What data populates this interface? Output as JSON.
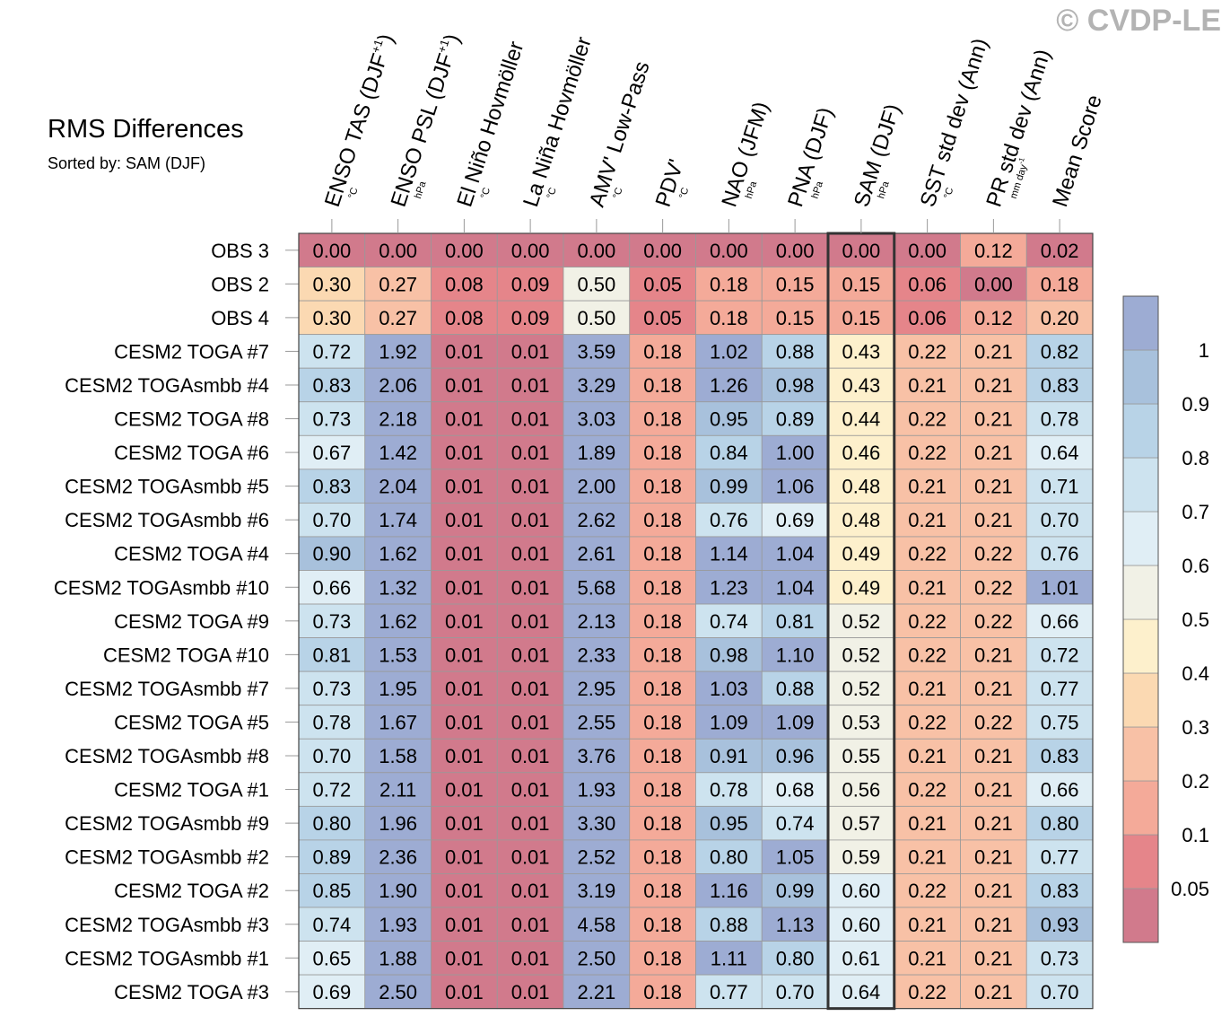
{
  "watermark": "© CVDP-LE",
  "chart_data": {
    "type": "heatmap",
    "title": "RMS Differences",
    "subtitle": "Sorted by: SAM (DJF)",
    "columns": [
      {
        "label": "ENSO TAS (DJF",
        "sup": "+1",
        "close": ")",
        "unit": "°C"
      },
      {
        "label": "ENSO PSL (DJF",
        "sup": "+1",
        "close": ")",
        "unit": "hPa"
      },
      {
        "label": "El Niño Hovmöller",
        "unit": "°C"
      },
      {
        "label": "La Niña Hovmöller",
        "unit": "°C"
      },
      {
        "label": "AMV' Low-Pass",
        "unit": "°C"
      },
      {
        "label": "PDV'",
        "unit": "°C"
      },
      {
        "label": "NAO (JFM)",
        "unit": "hPa"
      },
      {
        "label": "PNA (DJF)",
        "unit": "hPa"
      },
      {
        "label": "SAM (DJF)",
        "unit": "hPa"
      },
      {
        "label": "SST std dev (Ann)",
        "unit": "°C"
      },
      {
        "label": "PR std dev (Ann)",
        "unit": "mm day",
        "unit_sup": "-1"
      },
      {
        "label": "Mean Score",
        "unit": ""
      }
    ],
    "sorted_column_index": 8,
    "rows": [
      {
        "label": "OBS 3",
        "values": [
          "0.00",
          "0.00",
          "0.00",
          "0.00",
          "0.00",
          "0.00",
          "0.00",
          "0.00",
          "0.00",
          "0.00",
          "0.12",
          "0.02"
        ]
      },
      {
        "label": "OBS 2",
        "values": [
          "0.30",
          "0.27",
          "0.08",
          "0.09",
          "0.50",
          "0.05",
          "0.18",
          "0.15",
          "0.15",
          "0.06",
          "0.00",
          "0.18"
        ]
      },
      {
        "label": "OBS 4",
        "values": [
          "0.30",
          "0.27",
          "0.08",
          "0.09",
          "0.50",
          "0.05",
          "0.18",
          "0.15",
          "0.15",
          "0.06",
          "0.12",
          "0.20"
        ]
      },
      {
        "label": "CESM2 TOGA #7",
        "values": [
          "0.72",
          "1.92",
          "0.01",
          "0.01",
          "3.59",
          "0.18",
          "1.02",
          "0.88",
          "0.43",
          "0.22",
          "0.21",
          "0.82"
        ]
      },
      {
        "label": "CESM2 TOGAsmbb #4",
        "values": [
          "0.83",
          "2.06",
          "0.01",
          "0.01",
          "3.29",
          "0.18",
          "1.26",
          "0.98",
          "0.43",
          "0.21",
          "0.21",
          "0.83"
        ]
      },
      {
        "label": "CESM2 TOGA #8",
        "values": [
          "0.73",
          "2.18",
          "0.01",
          "0.01",
          "3.03",
          "0.18",
          "0.95",
          "0.89",
          "0.44",
          "0.22",
          "0.21",
          "0.78"
        ]
      },
      {
        "label": "CESM2 TOGA #6",
        "values": [
          "0.67",
          "1.42",
          "0.01",
          "0.01",
          "1.89",
          "0.18",
          "0.84",
          "1.00",
          "0.46",
          "0.22",
          "0.21",
          "0.64"
        ]
      },
      {
        "label": "CESM2 TOGAsmbb #5",
        "values": [
          "0.83",
          "2.04",
          "0.01",
          "0.01",
          "2.00",
          "0.18",
          "0.99",
          "1.06",
          "0.48",
          "0.21",
          "0.21",
          "0.71"
        ]
      },
      {
        "label": "CESM2 TOGAsmbb #6",
        "values": [
          "0.70",
          "1.74",
          "0.01",
          "0.01",
          "2.62",
          "0.18",
          "0.76",
          "0.69",
          "0.48",
          "0.21",
          "0.21",
          "0.70"
        ]
      },
      {
        "label": "CESM2 TOGA #4",
        "values": [
          "0.90",
          "1.62",
          "0.01",
          "0.01",
          "2.61",
          "0.18",
          "1.14",
          "1.04",
          "0.49",
          "0.22",
          "0.22",
          "0.76"
        ]
      },
      {
        "label": "CESM2 TOGAsmbb #10",
        "values": [
          "0.66",
          "1.32",
          "0.01",
          "0.01",
          "5.68",
          "0.18",
          "1.23",
          "1.04",
          "0.49",
          "0.21",
          "0.22",
          "1.01"
        ]
      },
      {
        "label": "CESM2 TOGA #9",
        "values": [
          "0.73",
          "1.62",
          "0.01",
          "0.01",
          "2.13",
          "0.18",
          "0.74",
          "0.81",
          "0.52",
          "0.22",
          "0.22",
          "0.66"
        ]
      },
      {
        "label": "CESM2 TOGA #10",
        "values": [
          "0.81",
          "1.53",
          "0.01",
          "0.01",
          "2.33",
          "0.18",
          "0.98",
          "1.10",
          "0.52",
          "0.22",
          "0.21",
          "0.72"
        ]
      },
      {
        "label": "CESM2 TOGAsmbb #7",
        "values": [
          "0.73",
          "1.95",
          "0.01",
          "0.01",
          "2.95",
          "0.18",
          "1.03",
          "0.88",
          "0.52",
          "0.21",
          "0.21",
          "0.77"
        ]
      },
      {
        "label": "CESM2 TOGA #5",
        "values": [
          "0.78",
          "1.67",
          "0.01",
          "0.01",
          "2.55",
          "0.18",
          "1.09",
          "1.09",
          "0.53",
          "0.22",
          "0.22",
          "0.75"
        ]
      },
      {
        "label": "CESM2 TOGAsmbb #8",
        "values": [
          "0.70",
          "1.58",
          "0.01",
          "0.01",
          "3.76",
          "0.18",
          "0.91",
          "0.96",
          "0.55",
          "0.21",
          "0.21",
          "0.83"
        ]
      },
      {
        "label": "CESM2 TOGA #1",
        "values": [
          "0.72",
          "2.11",
          "0.01",
          "0.01",
          "1.93",
          "0.18",
          "0.78",
          "0.68",
          "0.56",
          "0.22",
          "0.21",
          "0.66"
        ]
      },
      {
        "label": "CESM2 TOGAsmbb #9",
        "values": [
          "0.80",
          "1.96",
          "0.01",
          "0.01",
          "3.30",
          "0.18",
          "0.95",
          "0.74",
          "0.57",
          "0.21",
          "0.21",
          "0.80"
        ]
      },
      {
        "label": "CESM2 TOGAsmbb #2",
        "values": [
          "0.89",
          "2.36",
          "0.01",
          "0.01",
          "2.52",
          "0.18",
          "0.80",
          "1.05",
          "0.59",
          "0.21",
          "0.21",
          "0.77"
        ]
      },
      {
        "label": "CESM2 TOGA #2",
        "values": [
          "0.85",
          "1.90",
          "0.01",
          "0.01",
          "3.19",
          "0.18",
          "1.16",
          "0.99",
          "0.60",
          "0.22",
          "0.21",
          "0.83"
        ]
      },
      {
        "label": "CESM2 TOGAsmbb #3",
        "values": [
          "0.74",
          "1.93",
          "0.01",
          "0.01",
          "4.58",
          "0.18",
          "0.88",
          "1.13",
          "0.60",
          "0.21",
          "0.21",
          "0.93"
        ]
      },
      {
        "label": "CESM2 TOGAsmbb #1",
        "values": [
          "0.65",
          "1.88",
          "0.01",
          "0.01",
          "2.50",
          "0.18",
          "1.11",
          "0.80",
          "0.61",
          "0.21",
          "0.21",
          "0.73"
        ]
      },
      {
        "label": "CESM2 TOGA #3",
        "values": [
          "0.69",
          "2.50",
          "0.01",
          "0.01",
          "2.21",
          "0.18",
          "0.77",
          "0.70",
          "0.64",
          "0.22",
          "0.21",
          "0.70"
        ]
      }
    ],
    "colorbar": {
      "levels": [
        0.05,
        0.1,
        0.2,
        0.3,
        0.4,
        0.5,
        0.6,
        0.7,
        0.8,
        0.9,
        1
      ],
      "labels": [
        "0.05",
        "0.1",
        "0.2",
        "0.3",
        "0.4",
        "0.5",
        "0.6",
        "0.7",
        "0.8",
        "0.9",
        "1"
      ],
      "colors": [
        "#d17a8c",
        "#e5858a",
        "#f4aa99",
        "#f8c1a6",
        "#fbd9b2",
        "#fdf0cc",
        "#f1f1e6",
        "#e0eef5",
        "#cde3ef",
        "#b8d3e7",
        "#a8c1dc",
        "#9dacd3"
      ]
    }
  }
}
